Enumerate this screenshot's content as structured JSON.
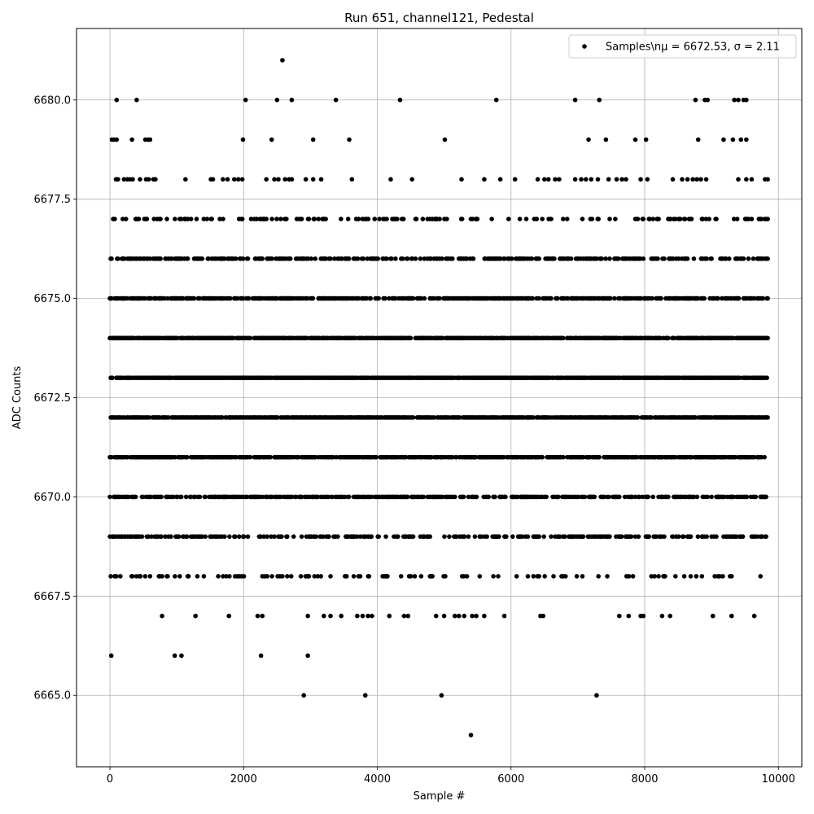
{
  "chart_data": {
    "type": "scatter",
    "title": "Run 651, channel121, Pedestal",
    "xlabel": "Sample #",
    "ylabel": "ADC Counts",
    "xlim": [
      -500,
      10350
    ],
    "ylim": [
      6663.2,
      6681.8
    ],
    "x_ticks": [
      0,
      2000,
      4000,
      6000,
      8000,
      10000
    ],
    "y_ticks": [
      6665.0,
      6667.5,
      6670.0,
      6672.5,
      6675.0,
      6677.5,
      6680.0
    ],
    "grid": true,
    "legend": {
      "position": "top-right",
      "label": "Samples\\nμ = 6672.53, σ = 2.11"
    },
    "marker_color": "#000000",
    "series": [
      {
        "name": "Samples\\nμ = 6672.53, σ = 2.11",
        "points": [
          [
            2580,
            6681
          ],
          [
            100,
            6680
          ],
          [
            400,
            6680
          ],
          [
            2030,
            6680
          ],
          [
            2500,
            6680
          ],
          [
            2720,
            6680
          ],
          [
            3380,
            6680
          ],
          [
            4340,
            6680
          ],
          [
            5780,
            6680
          ],
          [
            6960,
            6680
          ],
          [
            7320,
            6680
          ],
          [
            8760,
            6680
          ],
          [
            8900,
            6680
          ],
          [
            8940,
            6680
          ],
          [
            9340,
            6680
          ],
          [
            9400,
            6680
          ],
          [
            9480,
            6680
          ],
          [
            9520,
            6680
          ],
          [
            30,
            6679
          ],
          [
            60,
            6679
          ],
          [
            100,
            6679
          ],
          [
            330,
            6679
          ],
          [
            530,
            6679
          ],
          [
            570,
            6679
          ],
          [
            600,
            6679
          ],
          [
            1990,
            6679
          ],
          [
            2420,
            6679
          ],
          [
            3040,
            6679
          ],
          [
            3580,
            6679
          ],
          [
            5010,
            6679
          ],
          [
            7160,
            6679
          ],
          [
            7420,
            6679
          ],
          [
            7860,
            6679
          ],
          [
            8020,
            6679
          ],
          [
            8800,
            6679
          ],
          [
            9180,
            6679
          ],
          [
            9320,
            6679
          ],
          [
            9440,
            6679
          ],
          [
            9520,
            6679
          ],
          [
            90,
            6678
          ],
          [
            120,
            6678
          ],
          [
            210,
            6678
          ],
          [
            260,
            6678
          ],
          [
            300,
            6678
          ],
          [
            340,
            6678
          ],
          [
            450,
            6678
          ],
          [
            540,
            6678
          ],
          [
            580,
            6678
          ],
          [
            650,
            6678
          ],
          [
            680,
            6678
          ],
          [
            1130,
            6678
          ],
          [
            1510,
            6678
          ],
          [
            1540,
            6678
          ],
          [
            1690,
            6678
          ],
          [
            1760,
            6678
          ],
          [
            1860,
            6678
          ],
          [
            1920,
            6678
          ],
          [
            1980,
            6678
          ],
          [
            2340,
            6678
          ],
          [
            2460,
            6678
          ],
          [
            2520,
            6678
          ],
          [
            2620,
            6678
          ],
          [
            2680,
            6678
          ],
          [
            2720,
            6678
          ],
          [
            2930,
            6678
          ],
          [
            3040,
            6678
          ],
          [
            3160,
            6678
          ],
          [
            3620,
            6678
          ],
          [
            4200,
            6678
          ],
          [
            4520,
            6678
          ],
          [
            5260,
            6678
          ],
          [
            5600,
            6678
          ],
          [
            5840,
            6678
          ],
          [
            6060,
            6678
          ],
          [
            6400,
            6678
          ],
          [
            6500,
            6678
          ],
          [
            6560,
            6678
          ],
          [
            6660,
            6678
          ],
          [
            6720,
            6678
          ],
          [
            6960,
            6678
          ],
          [
            7050,
            6678
          ],
          [
            7120,
            6678
          ],
          [
            7200,
            6678
          ],
          [
            7300,
            6678
          ],
          [
            7460,
            6678
          ],
          [
            7580,
            6678
          ],
          [
            7660,
            6678
          ],
          [
            7720,
            6678
          ],
          [
            7940,
            6678
          ],
          [
            8040,
            6678
          ],
          [
            8420,
            6678
          ],
          [
            8560,
            6678
          ],
          [
            8640,
            6678
          ],
          [
            8720,
            6678
          ],
          [
            8780,
            6678
          ],
          [
            8840,
            6678
          ],
          [
            8920,
            6678
          ],
          [
            9400,
            6678
          ],
          [
            9520,
            6678
          ],
          [
            9600,
            6678
          ],
          [
            9800,
            6678
          ],
          [
            9840,
            6678
          ],
          [
            20,
            6666
          ],
          [
            970,
            6666
          ],
          [
            1070,
            6666
          ],
          [
            2260,
            6666
          ],
          [
            2960,
            6666
          ],
          [
            780,
            6667
          ],
          [
            1280,
            6667
          ],
          [
            1780,
            6667
          ],
          [
            2210,
            6667
          ],
          [
            2280,
            6667
          ],
          [
            2960,
            6667
          ],
          [
            3200,
            6667
          ],
          [
            3300,
            6667
          ],
          [
            3460,
            6667
          ],
          [
            3700,
            6667
          ],
          [
            3780,
            6667
          ],
          [
            3860,
            6667
          ],
          [
            3920,
            6667
          ],
          [
            4180,
            6667
          ],
          [
            4400,
            6667
          ],
          [
            4460,
            6667
          ],
          [
            4880,
            6667
          ],
          [
            5000,
            6667
          ],
          [
            5160,
            6667
          ],
          [
            5220,
            6667
          ],
          [
            5300,
            6667
          ],
          [
            5420,
            6667
          ],
          [
            5480,
            6667
          ],
          [
            5600,
            6667
          ],
          [
            5900,
            6667
          ],
          [
            6440,
            6667
          ],
          [
            6480,
            6667
          ],
          [
            7620,
            6667
          ],
          [
            7760,
            6667
          ],
          [
            7940,
            6667
          ],
          [
            7980,
            6667
          ],
          [
            8260,
            6667
          ],
          [
            8380,
            6667
          ],
          [
            9020,
            6667
          ],
          [
            9300,
            6667
          ],
          [
            9640,
            6667
          ],
          [
            2900,
            6665
          ],
          [
            3820,
            6665
          ],
          [
            4960,
            6665
          ],
          [
            7280,
            6665
          ],
          [
            5400,
            6664
          ]
        ]
      }
    ]
  }
}
